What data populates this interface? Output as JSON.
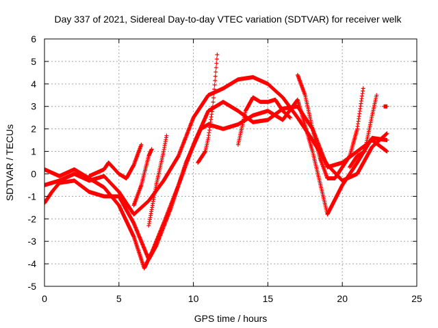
{
  "chart_data": {
    "type": "scatter",
    "title": "Day 337 of 2021, Sidereal Day-to-day VTEC variation (SDTVAR) for receiver welk",
    "xlabel": "GPS time / hours",
    "ylabel": "SDTVAR / TECUs",
    "xlim": [
      0,
      25
    ],
    "ylim": [
      -5,
      6
    ],
    "xticks": [
      "0",
      "5",
      "10",
      "15",
      "20",
      "25"
    ],
    "yticks": [
      "-5",
      "-4",
      "-3",
      "-2",
      "-1",
      "0",
      "1",
      "2",
      "3",
      "4",
      "5",
      "6"
    ],
    "grid": true,
    "legend": "none",
    "marker": "+",
    "series": [
      {
        "color": "#ff0000",
        "tracks": [
          [
            [
              0,
              -0.5
            ],
            [
              1,
              -0.3
            ],
            [
              2,
              0.0
            ],
            [
              3,
              -0.3
            ],
            [
              4,
              -0.1
            ],
            [
              5,
              -0.8
            ],
            [
              6,
              -1.8
            ],
            [
              7,
              -1.2
            ],
            [
              8,
              -0.3
            ],
            [
              9,
              0.8
            ],
            [
              10,
              2.5
            ],
            [
              11,
              3.5
            ],
            [
              12,
              3.8
            ],
            [
              13,
              4.2
            ],
            [
              14,
              4.3
            ],
            [
              15,
              4.0
            ],
            [
              16,
              3.4
            ],
            [
              17,
              2.5
            ],
            [
              18,
              1.5
            ],
            [
              19,
              0.4
            ],
            [
              20,
              -0.3
            ],
            [
              21,
              0.0
            ],
            [
              22,
              1.2
            ],
            [
              23,
              1.8
            ]
          ],
          [
            [
              0,
              0.2
            ],
            [
              1,
              -0.1
            ],
            [
              2,
              0.2
            ],
            [
              3,
              -0.2
            ],
            [
              4,
              -0.6
            ],
            [
              5,
              -1.4
            ],
            [
              6,
              -2.8
            ],
            [
              6.7,
              -4.2
            ],
            [
              7.2,
              -3.5
            ],
            [
              8,
              -2.2
            ],
            [
              9,
              -0.5
            ],
            [
              10,
              1.3
            ],
            [
              11,
              2.8
            ],
            [
              12,
              3.2
            ],
            [
              13,
              2.8
            ],
            [
              14,
              2.3
            ],
            [
              15,
              2.4
            ],
            [
              16,
              2.9
            ],
            [
              17,
              3.0
            ],
            [
              18,
              2.0
            ],
            [
              19,
              0.3
            ],
            [
              20,
              0.5
            ],
            [
              21,
              1.0
            ],
            [
              22,
              1.5
            ],
            [
              23,
              1.0
            ]
          ],
          [
            [
              0,
              -1.3
            ],
            [
              0.5,
              -0.8
            ],
            [
              1,
              -0.4
            ],
            [
              2,
              -0.3
            ],
            [
              3,
              -0.8
            ],
            [
              4,
              -1.0
            ],
            [
              5,
              -1.0
            ],
            [
              6,
              -2.2
            ],
            [
              7,
              -3.8
            ],
            [
              7.5,
              -3.2
            ],
            [
              8.5,
              -1.5
            ],
            [
              9.5,
              0.5
            ],
            [
              10.5,
              2.0
            ],
            [
              11,
              2.2
            ],
            [
              12,
              2.0
            ],
            [
              13,
              2.2
            ],
            [
              14,
              2.6
            ],
            [
              15,
              2.8
            ],
            [
              16,
              2.4
            ],
            [
              17,
              3.3
            ],
            [
              18,
              1.0
            ],
            [
              19,
              -1.8
            ],
            [
              20,
              -0.5
            ],
            [
              21,
              0.5
            ],
            [
              22,
              1.6
            ],
            [
              23,
              1.5
            ]
          ],
          [
            [
              3,
              -0.1
            ],
            [
              4,
              0.2
            ],
            [
              4.3,
              0.5
            ],
            [
              5,
              0.0
            ],
            [
              5.5,
              -0.2
            ],
            [
              6,
              0.4
            ],
            [
              6.5,
              1.3
            ]
          ],
          [
            [
              6,
              -1.4
            ],
            [
              6.5,
              -0.5
            ],
            [
              7,
              0.8
            ],
            [
              7.2,
              1.1
            ]
          ],
          [
            [
              7,
              -2.3
            ],
            [
              7.5,
              -0.5
            ],
            [
              8,
              1.0
            ],
            [
              8.2,
              1.7
            ]
          ],
          [
            [
              10.3,
              0.5
            ],
            [
              10.8,
              1.0
            ],
            [
              11,
              1.6
            ],
            [
              11.3,
              3.0
            ],
            [
              11.6,
              5.3
            ]
          ],
          [
            [
              13,
              1.3
            ],
            [
              13.5,
              2.8
            ],
            [
              14,
              3.4
            ],
            [
              14.5,
              3.2
            ],
            [
              15,
              3.2
            ],
            [
              15.5,
              3.3
            ],
            [
              16,
              2.8
            ],
            [
              16.5,
              2.5
            ]
          ],
          [
            [
              17,
              4.4
            ],
            [
              17.5,
              3.5
            ],
            [
              18,
              2.0
            ],
            [
              18.5,
              0.7
            ],
            [
              19,
              -0.2
            ],
            [
              19.5,
              -0.2
            ],
            [
              20,
              0.3
            ],
            [
              20.5,
              0.8
            ],
            [
              21,
              2.0
            ],
            [
              21.4,
              3.8
            ]
          ],
          [
            [
              20.5,
              0.3
            ],
            [
              21,
              0.8
            ],
            [
              21.5,
              1.0
            ],
            [
              22,
              2.6
            ],
            [
              22.3,
              3.5
            ]
          ],
          [
            [
              22.8,
              3.0
            ],
            [
              23,
              3.0
            ]
          ]
        ]
      }
    ]
  }
}
